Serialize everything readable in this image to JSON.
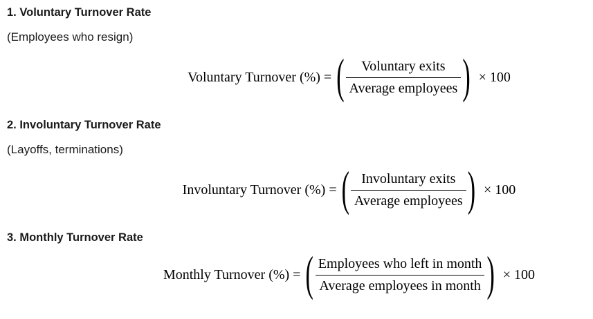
{
  "page": {
    "background": "#ffffff",
    "text_color": "#1a1a1a",
    "math_color": "#000000"
  },
  "sections": [
    {
      "heading": "1. Voluntary Turnover Rate",
      "subtitle": "(Employees who resign)",
      "formula": {
        "lhs": "Voluntary Turnover (%) =",
        "open_paren": "(",
        "numerator": "Voluntary exits",
        "denominator": "Average employees",
        "close_paren": ")",
        "rhs": "× 100"
      }
    },
    {
      "heading": "2. Involuntary Turnover Rate",
      "subtitle": "(Layoffs, terminations)",
      "formula": {
        "lhs": "Involuntary Turnover (%) =",
        "open_paren": "(",
        "numerator": "Involuntary exits",
        "denominator": "Average employees",
        "close_paren": ")",
        "rhs": "× 100"
      }
    },
    {
      "heading": "3. Monthly Turnover Rate",
      "formula": {
        "lhs": "Monthly Turnover (%) =",
        "open_paren": "(",
        "numerator": "Employees who left in month",
        "denominator": "Average employees in month",
        "close_paren": ")",
        "rhs": "× 100"
      }
    }
  ]
}
